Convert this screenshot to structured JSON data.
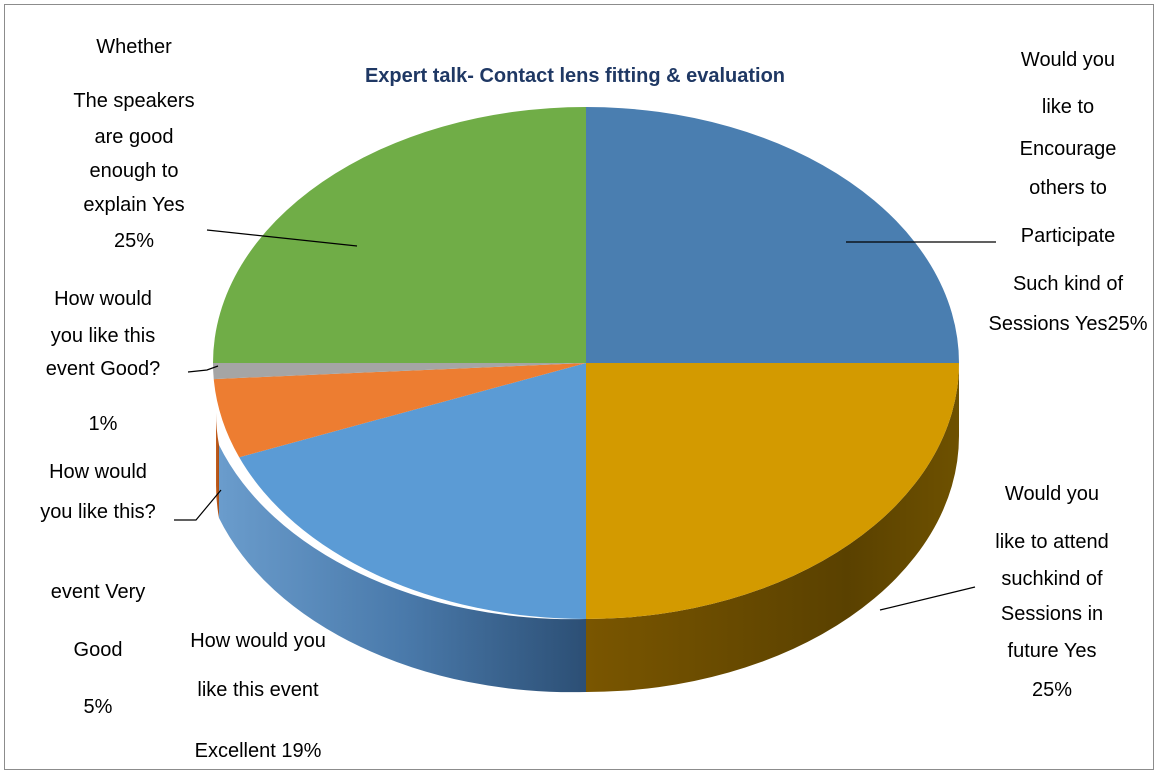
{
  "chart_data": {
    "type": "pie",
    "title": "Expert talk- Contact lens fitting & evaluation",
    "title_color": "#1f3864",
    "three_d": true,
    "legend": "none",
    "slices": [
      {
        "value": 25,
        "color": "#4a7eb0",
        "label_lines": [
          "Would you",
          "like to",
          "Encourage",
          "others to",
          "Participate",
          "Such kind of",
          "Sessions  Yes25%"
        ]
      },
      {
        "value": 25,
        "color": "#d39a00",
        "label_lines": [
          "Would you",
          "like to attend",
          "suchkind of",
          "Sessions in",
          "future Yes",
          "25%"
        ]
      },
      {
        "value": 19,
        "color": "#5b9bd5",
        "label_lines": [
          "How would you",
          "like this event",
          "Excellent 19%"
        ]
      },
      {
        "value": 5,
        "color": "#ed7d31",
        "label_lines": [
          "How would",
          "you like this?",
          "event Very",
          "Good",
          "5%"
        ]
      },
      {
        "value": 1,
        "color": "#a5a5a5",
        "label_lines": [
          "How would",
          "you like this",
          "event Good?",
          "1%"
        ]
      },
      {
        "value": 25,
        "color": "#70ad47",
        "label_lines": [
          "Whether",
          "The speakers",
          "are good",
          "enough to",
          "explain Yes",
          "25%"
        ]
      }
    ]
  }
}
